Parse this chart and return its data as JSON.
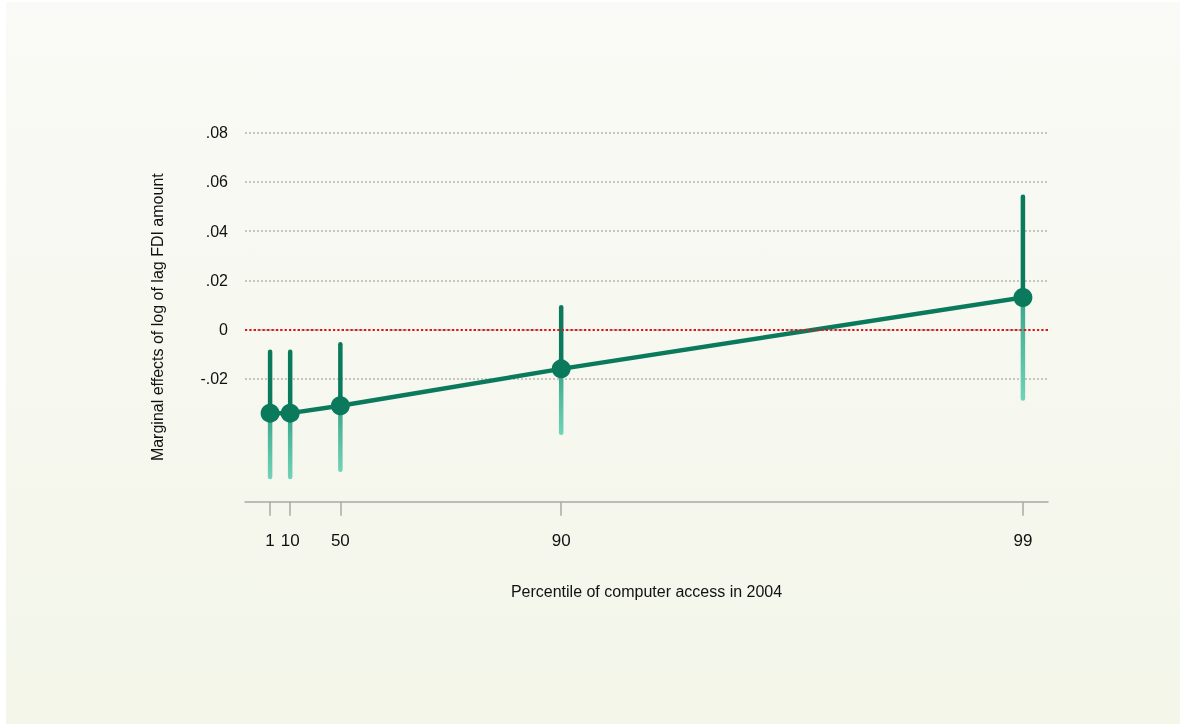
{
  "chart_data": {
    "type": "line",
    "xlabel": "Percentile of computer access in 2004",
    "ylabel": "Marginal effects of log of lag FDI amount",
    "categories": [
      null,
      null,
      "1",
      null,
      "10",
      null,
      null,
      null,
      null,
      "50",
      null,
      null,
      null,
      null,
      null,
      null,
      null,
      null,
      null,
      null,
      null,
      null,
      null,
      null,
      null,
      null,
      null,
      null,
      null,
      null,
      null,
      "90",
      null,
      null,
      null,
      null,
      null,
      null,
      null,
      null,
      null,
      null,
      null,
      null,
      null,
      null,
      null,
      null,
      null,
      null,
      null,
      null,
      null,
      null,
      null,
      null,
      null,
      null,
      null,
      null,
      null,
      null,
      null,
      null,
      null,
      null,
      null,
      null,
      null,
      null,
      null,
      null,
      null,
      null,
      null,
      null,
      null,
      "99",
      null,
      null
    ],
    "series": [
      {
        "color": "#0b7a5c",
        "values": [
          null,
          null,
          -0.034,
          null,
          -0.034,
          null,
          null,
          null,
          null,
          -0.031,
          null,
          null,
          null,
          null,
          null,
          null,
          null,
          null,
          null,
          null,
          null,
          null,
          null,
          null,
          null,
          null,
          null,
          null,
          null,
          null,
          null,
          -0.016,
          null,
          null,
          null,
          null,
          null,
          null,
          null,
          null,
          null,
          null,
          null,
          null,
          null,
          null,
          null,
          null,
          null,
          null,
          null,
          null,
          null,
          null,
          null,
          null,
          null,
          null,
          null,
          null,
          null,
          null,
          null,
          null,
          null,
          null,
          null,
          null,
          null,
          null,
          null,
          null,
          null,
          null,
          null,
          null,
          null,
          0.013,
          null,
          null
        ],
        "errors": [
          null,
          null,
          [
            -0.06,
            -0.009
          ],
          null,
          [
            -0.06,
            -0.009
          ],
          null,
          null,
          null,
          null,
          [
            -0.057,
            -0.006
          ],
          null,
          null,
          null,
          null,
          null,
          null,
          null,
          null,
          null,
          null,
          null,
          null,
          null,
          null,
          null,
          null,
          null,
          null,
          null,
          null,
          null,
          [
            -0.042,
            0.009
          ],
          null,
          null,
          null,
          null,
          null,
          null,
          null,
          null,
          null,
          null,
          null,
          null,
          null,
          null,
          null,
          null,
          null,
          null,
          null,
          null,
          null,
          null,
          null,
          null,
          null,
          null,
          null,
          null,
          null,
          null,
          null,
          null,
          null,
          null,
          null,
          null,
          null,
          null,
          null,
          null,
          null,
          null,
          null,
          null,
          null,
          [
            -0.028,
            0.054
          ],
          null,
          null
        ]
      }
    ],
    "ylim": [
      -0.07,
      0.08
    ],
    "yticks": [
      {
        "value": -0.02,
        "label": "-.02"
      },
      0,
      {
        "value": 0.02,
        "label": ".02"
      },
      {
        "value": 0.04,
        "label": ".04"
      },
      {
        "value": 0.06,
        "label": ".06"
      },
      {
        "value": 0.08,
        "label": ".08"
      }
    ],
    "ref_lines": [
      {
        "axis": "y",
        "value": 0,
        "color": "#e3121b",
        "line_style": "dotted"
      }
    ],
    "grid": "y",
    "marker": "circle",
    "line_style": "solid"
  }
}
